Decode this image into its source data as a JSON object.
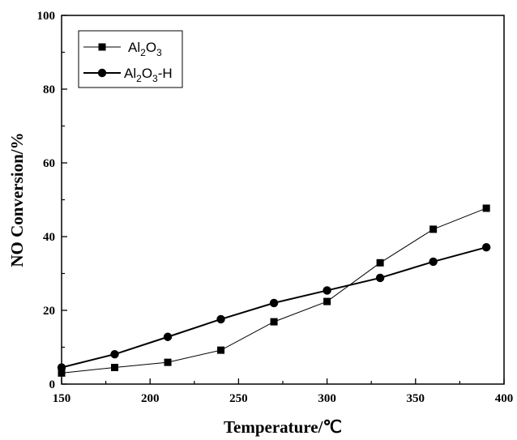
{
  "chart_data": {
    "type": "line",
    "title": "",
    "xlabel": "Temperature/℃",
    "ylabel": "NO Conversion/%",
    "xlim": [
      150,
      400
    ],
    "ylim": [
      0,
      100
    ],
    "x_ticks": [
      150,
      200,
      250,
      300,
      350,
      400
    ],
    "y_ticks": [
      0,
      20,
      40,
      60,
      80,
      100
    ],
    "grid": false,
    "legend_position": "top-left",
    "x": [
      150,
      180,
      210,
      240,
      270,
      300,
      330,
      360,
      390
    ],
    "series": [
      {
        "name": "Al2O3",
        "marker": "square",
        "line_width": "thin",
        "color": "#000000",
        "values": [
          3.0,
          4.5,
          5.9,
          9.2,
          16.9,
          22.4,
          32.9,
          42.0,
          47.7
        ]
      },
      {
        "name": "Al2O3-H",
        "marker": "circle",
        "line_width": "thick",
        "color": "#000000",
        "values": [
          4.5,
          8.1,
          12.8,
          17.6,
          22.0,
          25.4,
          28.8,
          33.2,
          37.1
        ]
      }
    ]
  },
  "legend": {
    "items": [
      {
        "base": "Al",
        "sub1": "2",
        "mid": "O",
        "sub2": "3",
        "suffix": ""
      },
      {
        "base": "Al",
        "sub1": "2",
        "mid": "O",
        "sub2": "3",
        "suffix": "-H"
      }
    ]
  }
}
